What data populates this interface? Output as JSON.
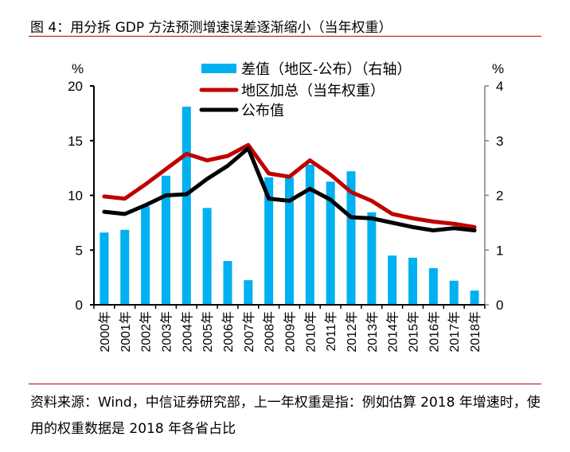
{
  "title": "图 4：用分拆 GDP 方法预测增速误差逐渐缩小（当年权重）",
  "source": "资料来源：Wind，中信证券研究部，上一年权重是指：例如估算 2018 年增速时，使用的权重数据是 2018 年各省占比",
  "chart_data": {
    "type": "bar+line",
    "categories": [
      "2000年",
      "2001年",
      "2002年",
      "2003年",
      "2004年",
      "2005年",
      "2006年",
      "2007年",
      "2008年",
      "2009年",
      "2010年",
      "2011年",
      "2012年",
      "2013年",
      "2014年",
      "2015年",
      "2016年",
      "2017年",
      "2018年"
    ],
    "left_axis": {
      "unit": "%",
      "ylim": [
        0,
        20
      ],
      "ticks": [
        "0",
        "5",
        "10",
        "15",
        "20"
      ]
    },
    "right_axis": {
      "unit": "%",
      "ylim": [
        0,
        4
      ],
      "ticks": [
        "0",
        "1",
        "2",
        "3",
        "4"
      ]
    },
    "series": [
      {
        "name": "差值（地区-公布）（右轴）",
        "type": "bar",
        "axis": "right",
        "color": "#00b0f0",
        "values": [
          1.32,
          1.37,
          1.8,
          2.36,
          3.62,
          1.77,
          0.8,
          0.45,
          2.33,
          2.33,
          2.56,
          2.25,
          2.44,
          1.69,
          0.9,
          0.86,
          0.67,
          0.44,
          0.26
        ]
      },
      {
        "name": "地区加总（当年权重）",
        "type": "line",
        "axis": "left",
        "color": "#c00000",
        "values": [
          9.9,
          9.7,
          11.0,
          12.4,
          13.8,
          13.2,
          13.6,
          14.6,
          12.0,
          11.7,
          13.2,
          11.9,
          10.3,
          9.5,
          8.3,
          7.9,
          7.6,
          7.4,
          7.1
        ]
      },
      {
        "name": "公布值",
        "type": "line",
        "axis": "left",
        "color": "#000000",
        "values": [
          8.5,
          8.3,
          9.1,
          10.0,
          10.1,
          11.5,
          12.7,
          14.3,
          9.7,
          9.5,
          10.6,
          9.6,
          8.0,
          7.9,
          7.5,
          7.1,
          6.8,
          7.0,
          6.8
        ]
      }
    ],
    "legend_position": "top-right",
    "grid": false
  }
}
